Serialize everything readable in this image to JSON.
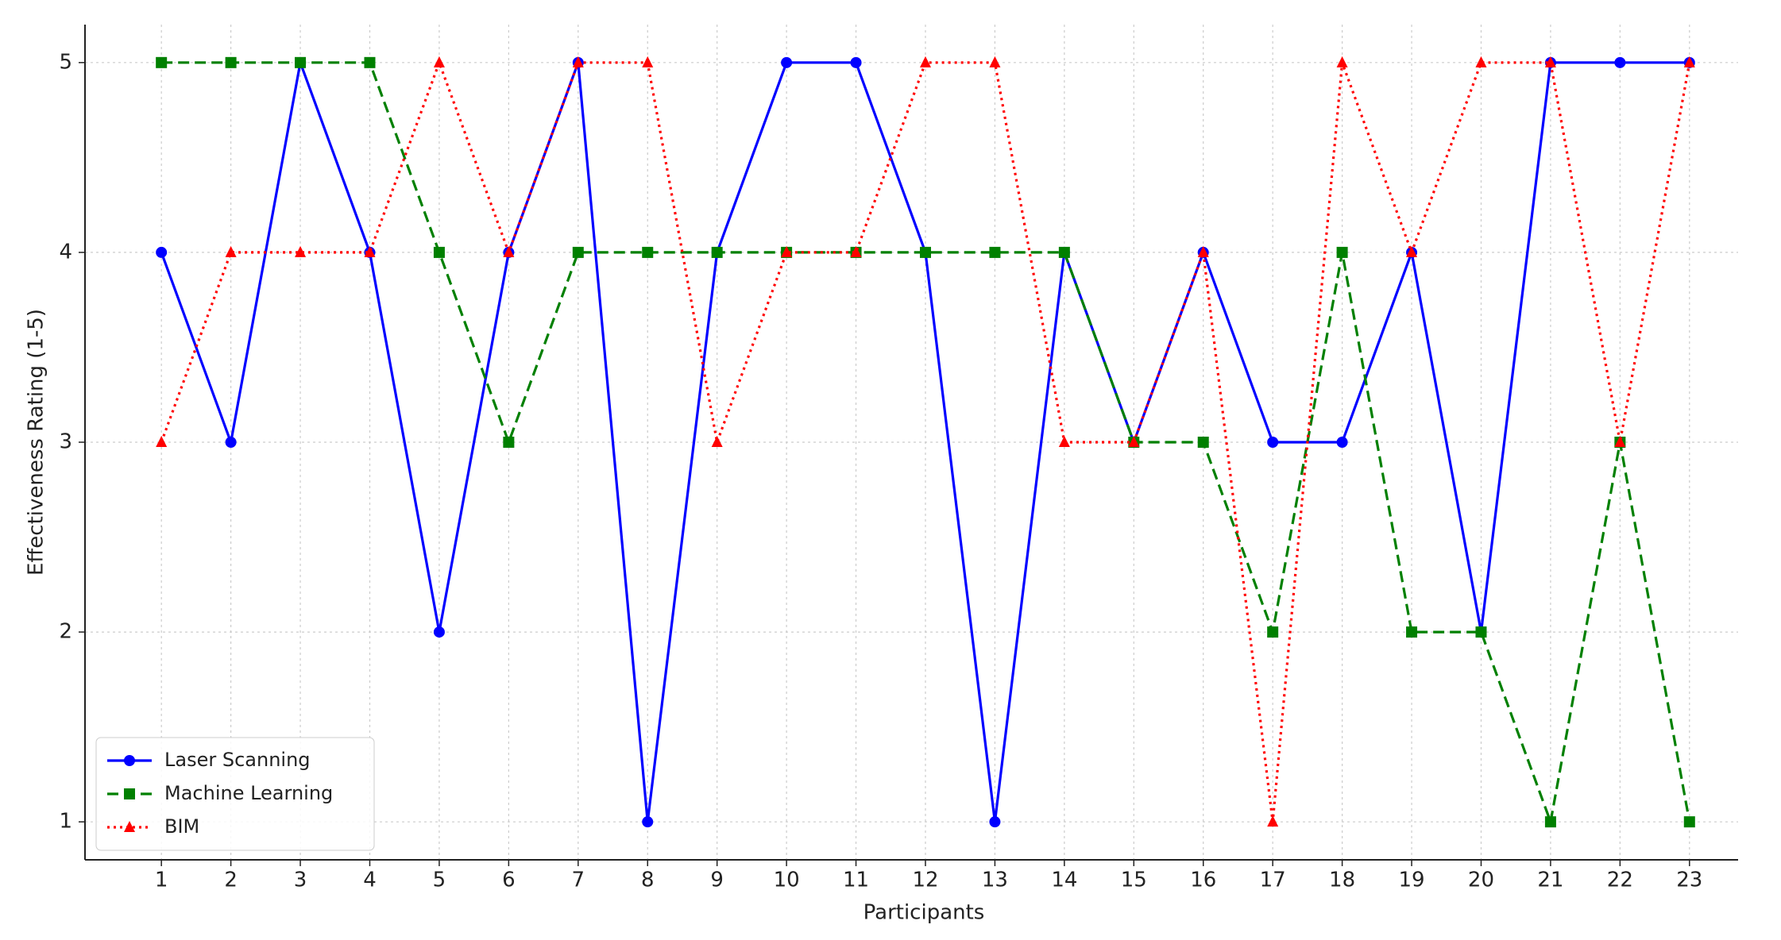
{
  "chart_data": {
    "type": "line",
    "xlabel": "Participants",
    "ylabel": "Effectiveness Rating (1-5)",
    "x": [
      1,
      2,
      3,
      4,
      5,
      6,
      7,
      8,
      9,
      10,
      11,
      12,
      13,
      14,
      15,
      16,
      17,
      18,
      19,
      20,
      21,
      22,
      23
    ],
    "xlim": [
      -0.1,
      23.7
    ],
    "xticks": [
      1,
      2,
      3,
      4,
      5,
      6,
      7,
      8,
      9,
      10,
      11,
      12,
      13,
      14,
      15,
      16,
      17,
      18,
      19,
      20,
      21,
      22,
      23
    ],
    "ylim": [
      0.8,
      5.2
    ],
    "yticks": [
      1,
      2,
      3,
      4,
      5
    ],
    "grid": true,
    "legend": "lower left",
    "series": [
      {
        "name": "Laser Scanning",
        "color": "#0000ff",
        "linestyle": "solid",
        "marker": "circle",
        "values": [
          4,
          3,
          5,
          4,
          2,
          4,
          5,
          1,
          4,
          5,
          5,
          4,
          1,
          4,
          3,
          4,
          3,
          3,
          4,
          2,
          5,
          5,
          5
        ]
      },
      {
        "name": "Machine Learning",
        "color": "#008000",
        "linestyle": "dashed",
        "marker": "square",
        "values": [
          5,
          5,
          5,
          5,
          4,
          3,
          4,
          4,
          4,
          4,
          4,
          4,
          4,
          4,
          3,
          3,
          2,
          4,
          2,
          2,
          1,
          3,
          1
        ]
      },
      {
        "name": "BIM",
        "color": "#ff0000",
        "linestyle": "dotted",
        "marker": "triangle",
        "values": [
          3,
          4,
          4,
          4,
          5,
          4,
          5,
          5,
          3,
          4,
          4,
          5,
          5,
          3,
          3,
          4,
          1,
          5,
          4,
          5,
          5,
          3,
          5
        ]
      }
    ]
  }
}
